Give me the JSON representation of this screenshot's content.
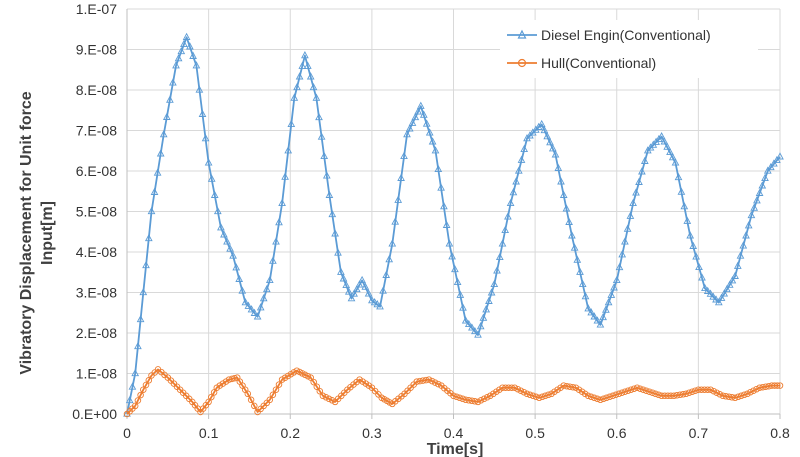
{
  "chart_data": {
    "type": "line",
    "xlabel": "Time[s]",
    "ylabel_lines": [
      "Vibratory Displacement for Unit force",
      "Input[m]"
    ],
    "xlim": [
      0,
      0.8
    ],
    "ylim": [
      0,
      1e-07
    ],
    "x_ticks": [
      0,
      0.1,
      0.2,
      0.3,
      0.4,
      0.5,
      0.6,
      0.7,
      0.8
    ],
    "x_tick_labels": [
      "0",
      "0.1",
      "0.2",
      "0.3",
      "0.4",
      "0.5",
      "0.6",
      "0.7",
      "0.8"
    ],
    "y_ticks": [
      0,
      1e-08,
      2e-08,
      3e-08,
      4e-08,
      5e-08,
      6e-08,
      7e-08,
      8e-08,
      9e-08,
      1e-07
    ],
    "y_tick_labels": [
      "0.E+00",
      "1.E-08",
      "2.E-08",
      "3.E-08",
      "4.E-08",
      "5.E-08",
      "6.E-08",
      "7.E-08",
      "8.E-08",
      "9.E-08",
      "1.E-07"
    ],
    "grid": "both",
    "legend_position": "top-right",
    "series": [
      {
        "name": "Diesel Engin(Conventional)",
        "color": "#5b9bd5",
        "marker": "triangle",
        "points": [
          [
            0,
            0
          ],
          [
            0.01,
            1e-08
          ],
          [
            0.02,
            3e-08
          ],
          [
            0.03,
            5e-08
          ],
          [
            0.045,
            6.9e-08
          ],
          [
            0.06,
            8.6e-08
          ],
          [
            0.073,
            9.3e-08
          ],
          [
            0.085,
            8.6e-08
          ],
          [
            0.1,
            6.2e-08
          ],
          [
            0.115,
            4.6e-08
          ],
          [
            0.13,
            3.9e-08
          ],
          [
            0.145,
            2.75e-08
          ],
          [
            0.16,
            2.4e-08
          ],
          [
            0.175,
            3.3e-08
          ],
          [
            0.19,
            5.2e-08
          ],
          [
            0.205,
            7.8e-08
          ],
          [
            0.218,
            8.85e-08
          ],
          [
            0.232,
            7.8e-08
          ],
          [
            0.248,
            5.4e-08
          ],
          [
            0.262,
            3.5e-08
          ],
          [
            0.275,
            2.85e-08
          ],
          [
            0.288,
            3.3e-08
          ],
          [
            0.3,
            2.8e-08
          ],
          [
            0.31,
            2.65e-08
          ],
          [
            0.325,
            4.2e-08
          ],
          [
            0.343,
            6.9e-08
          ],
          [
            0.36,
            7.6e-08
          ],
          [
            0.378,
            6.5e-08
          ],
          [
            0.395,
            4.2e-08
          ],
          [
            0.415,
            2.3e-08
          ],
          [
            0.43,
            1.95e-08
          ],
          [
            0.45,
            3.2e-08
          ],
          [
            0.47,
            5.2e-08
          ],
          [
            0.49,
            6.8e-08
          ],
          [
            0.508,
            7.15e-08
          ],
          [
            0.525,
            6.4e-08
          ],
          [
            0.545,
            4.4e-08
          ],
          [
            0.565,
            2.6e-08
          ],
          [
            0.58,
            2.2e-08
          ],
          [
            0.6,
            3.3e-08
          ],
          [
            0.62,
            5.2e-08
          ],
          [
            0.638,
            6.5e-08
          ],
          [
            0.655,
            6.85e-08
          ],
          [
            0.672,
            6.2e-08
          ],
          [
            0.69,
            4.4e-08
          ],
          [
            0.708,
            3.1e-08
          ],
          [
            0.725,
            2.75e-08
          ],
          [
            0.745,
            3.4e-08
          ],
          [
            0.765,
            4.9e-08
          ],
          [
            0.785,
            6e-08
          ],
          [
            0.8,
            6.35e-08
          ]
        ]
      },
      {
        "name": "Hull(Conventional)",
        "color": "#ed7d31",
        "marker": "circle",
        "points": [
          [
            0,
            0
          ],
          [
            0.01,
            2e-09
          ],
          [
            0.02,
            6e-09
          ],
          [
            0.03,
            9.5e-09
          ],
          [
            0.038,
            1.1e-08
          ],
          [
            0.05,
            9e-09
          ],
          [
            0.065,
            6e-09
          ],
          [
            0.08,
            3e-09
          ],
          [
            0.09,
            5e-10
          ],
          [
            0.1,
            3e-09
          ],
          [
            0.11,
            6.5e-09
          ],
          [
            0.125,
            8.5e-09
          ],
          [
            0.135,
            9e-09
          ],
          [
            0.148,
            5e-09
          ],
          [
            0.16,
            5e-10
          ],
          [
            0.175,
            3.5e-09
          ],
          [
            0.19,
            8.5e-09
          ],
          [
            0.208,
            1.07e-08
          ],
          [
            0.225,
            9e-09
          ],
          [
            0.24,
            4.5e-09
          ],
          [
            0.255,
            3e-09
          ],
          [
            0.27,
            6e-09
          ],
          [
            0.285,
            8.5e-09
          ],
          [
            0.3,
            6.5e-09
          ],
          [
            0.312,
            4e-09
          ],
          [
            0.325,
            2.5e-09
          ],
          [
            0.34,
            5e-09
          ],
          [
            0.355,
            8e-09
          ],
          [
            0.37,
            8.5e-09
          ],
          [
            0.385,
            7e-09
          ],
          [
            0.4,
            4.5e-09
          ],
          [
            0.415,
            3.5e-09
          ],
          [
            0.43,
            3e-09
          ],
          [
            0.445,
            4.5e-09
          ],
          [
            0.46,
            6.5e-09
          ],
          [
            0.475,
            6.5e-09
          ],
          [
            0.49,
            5e-09
          ],
          [
            0.505,
            4e-09
          ],
          [
            0.52,
            5e-09
          ],
          [
            0.535,
            7e-09
          ],
          [
            0.55,
            6.5e-09
          ],
          [
            0.565,
            4.5e-09
          ],
          [
            0.58,
            3.5e-09
          ],
          [
            0.595,
            4.5e-09
          ],
          [
            0.61,
            5.5e-09
          ],
          [
            0.625,
            6.5e-09
          ],
          [
            0.64,
            5.5e-09
          ],
          [
            0.655,
            4.5e-09
          ],
          [
            0.67,
            4.5e-09
          ],
          [
            0.685,
            5e-09
          ],
          [
            0.7,
            6e-09
          ],
          [
            0.715,
            6e-09
          ],
          [
            0.73,
            4.5e-09
          ],
          [
            0.745,
            4e-09
          ],
          [
            0.76,
            5e-09
          ],
          [
            0.775,
            6.5e-09
          ],
          [
            0.79,
            7e-09
          ],
          [
            0.8,
            7e-09
          ]
        ]
      }
    ]
  }
}
